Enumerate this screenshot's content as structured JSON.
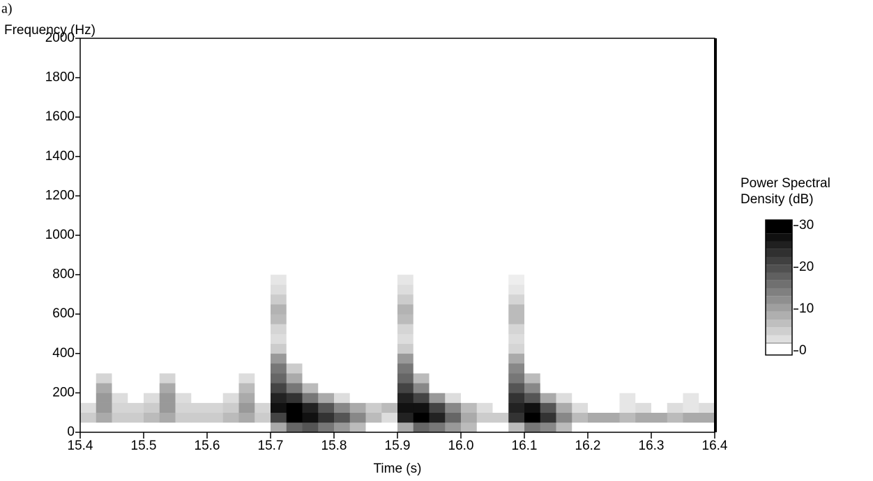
{
  "panel_label": "a)",
  "chart_data": {
    "type": "spectrogram",
    "ylabel": "Frequency (Hz)",
    "xlabel": "Time (s)",
    "colorbar_label": [
      "Power Spectral",
      "Density (dB)"
    ],
    "xlim": [
      15.4,
      16.4
    ],
    "xticks": [
      15.4,
      15.5,
      15.6,
      15.7,
      15.8,
      15.9,
      {
        "value": 16,
        "label": "16.0"
      },
      16.1,
      16.2,
      16.3,
      16.4
    ],
    "ylim": [
      0,
      2000
    ],
    "yticks": [
      0,
      200,
      400,
      600,
      800,
      1000,
      1200,
      1400,
      1600,
      1800,
      2000
    ],
    "clim": [
      0,
      30
    ],
    "cticks": [
      30,
      20,
      10,
      0
    ],
    "x_step": 0.025,
    "y_step": 50,
    "values": [
      [
        0,
        0,
        0,
        0,
        0,
        0,
        0,
        0,
        0,
        0,
        0,
        0,
        10,
        18,
        20,
        16,
        12,
        8,
        0,
        0,
        10,
        18,
        16,
        12,
        8,
        0,
        0,
        8,
        16,
        14,
        8,
        0,
        0,
        0,
        0,
        0,
        0,
        0,
        0,
        0
      ],
      [
        6,
        10,
        6,
        6,
        8,
        10,
        6,
        6,
        6,
        8,
        10,
        6,
        22,
        30,
        28,
        24,
        20,
        14,
        8,
        4,
        26,
        30,
        26,
        18,
        10,
        6,
        6,
        24,
        30,
        24,
        14,
        8,
        10,
        10,
        8,
        10,
        10,
        8,
        10,
        10
      ],
      [
        4,
        12,
        5,
        5,
        6,
        12,
        5,
        5,
        5,
        6,
        12,
        5,
        28,
        30,
        26,
        20,
        14,
        10,
        6,
        8,
        28,
        28,
        22,
        14,
        8,
        4,
        0,
        26,
        28,
        20,
        10,
        4,
        0,
        0,
        3,
        4,
        0,
        4,
        3,
        4
      ],
      [
        0,
        12,
        4,
        0,
        4,
        12,
        4,
        0,
        0,
        4,
        10,
        0,
        26,
        24,
        16,
        10,
        4,
        0,
        0,
        0,
        26,
        22,
        12,
        4,
        0,
        0,
        0,
        24,
        20,
        10,
        4,
        0,
        0,
        0,
        3,
        0,
        0,
        0,
        3,
        0
      ],
      [
        0,
        10,
        0,
        0,
        0,
        10,
        0,
        0,
        0,
        0,
        8,
        0,
        22,
        16,
        8,
        0,
        0,
        0,
        0,
        0,
        22,
        14,
        0,
        0,
        0,
        0,
        0,
        20,
        14,
        0,
        0,
        0,
        0,
        0,
        0,
        0,
        0,
        0,
        0,
        0
      ],
      [
        0,
        5,
        0,
        0,
        0,
        5,
        0,
        0,
        0,
        0,
        4,
        0,
        18,
        10,
        0,
        0,
        0,
        0,
        0,
        0,
        18,
        8,
        0,
        0,
        0,
        0,
        0,
        16,
        8,
        0,
        0,
        0,
        0,
        0,
        0,
        0,
        0,
        0,
        0,
        0
      ],
      [
        0,
        0,
        0,
        0,
        0,
        0,
        0,
        0,
        0,
        0,
        0,
        0,
        16,
        6,
        0,
        0,
        0,
        0,
        0,
        0,
        16,
        0,
        0,
        0,
        0,
        0,
        0,
        14,
        0,
        0,
        0,
        0,
        0,
        0,
        0,
        0,
        0,
        0,
        0,
        0
      ],
      [
        0,
        0,
        0,
        0,
        0,
        0,
        0,
        0,
        0,
        0,
        0,
        0,
        12,
        0,
        0,
        0,
        0,
        0,
        0,
        0,
        12,
        0,
        0,
        0,
        0,
        0,
        0,
        10,
        0,
        0,
        0,
        0,
        0,
        0,
        0,
        0,
        0,
        0,
        0,
        0
      ],
      [
        0,
        0,
        0,
        0,
        0,
        0,
        0,
        0,
        0,
        0,
        0,
        0,
        6,
        0,
        0,
        0,
        0,
        0,
        0,
        0,
        6,
        0,
        0,
        0,
        0,
        0,
        0,
        5,
        0,
        0,
        0,
        0,
        0,
        0,
        0,
        0,
        0,
        0,
        0,
        0
      ],
      [
        0,
        0,
        0,
        0,
        0,
        0,
        0,
        0,
        0,
        0,
        0,
        0,
        4,
        0,
        0,
        0,
        0,
        0,
        0,
        0,
        4,
        0,
        0,
        0,
        0,
        0,
        0,
        4,
        0,
        0,
        0,
        0,
        0,
        0,
        0,
        0,
        0,
        0,
        0,
        0
      ],
      [
        0,
        0,
        0,
        0,
        0,
        0,
        0,
        0,
        0,
        0,
        0,
        0,
        5,
        0,
        0,
        0,
        0,
        0,
        0,
        0,
        5,
        0,
        0,
        0,
        0,
        0,
        0,
        5,
        0,
        0,
        0,
        0,
        0,
        0,
        0,
        0,
        0,
        0,
        0,
        0
      ],
      [
        0,
        0,
        0,
        0,
        0,
        0,
        0,
        0,
        0,
        0,
        0,
        0,
        8,
        0,
        0,
        0,
        0,
        0,
        0,
        0,
        8,
        0,
        0,
        0,
        0,
        0,
        0,
        8,
        0,
        0,
        0,
        0,
        0,
        0,
        0,
        0,
        0,
        0,
        0,
        0
      ],
      [
        0,
        0,
        0,
        0,
        0,
        0,
        0,
        0,
        0,
        0,
        0,
        0,
        9,
        0,
        0,
        0,
        0,
        0,
        0,
        0,
        9,
        0,
        0,
        0,
        0,
        0,
        0,
        8,
        0,
        0,
        0,
        0,
        0,
        0,
        0,
        0,
        0,
        0,
        0,
        0
      ],
      [
        0,
        0,
        0,
        0,
        0,
        0,
        0,
        0,
        0,
        0,
        0,
        0,
        6,
        0,
        0,
        0,
        0,
        0,
        0,
        0,
        6,
        0,
        0,
        0,
        0,
        0,
        0,
        5,
        0,
        0,
        0,
        0,
        0,
        0,
        0,
        0,
        0,
        0,
        0,
        0
      ],
      [
        0,
        0,
        0,
        0,
        0,
        0,
        0,
        0,
        0,
        0,
        0,
        0,
        4,
        0,
        0,
        0,
        0,
        0,
        0,
        0,
        4,
        0,
        0,
        0,
        0,
        0,
        0,
        3,
        0,
        0,
        0,
        0,
        0,
        0,
        0,
        0,
        0,
        0,
        0,
        0
      ],
      [
        0,
        0,
        0,
        0,
        0,
        0,
        0,
        0,
        0,
        0,
        0,
        0,
        3,
        0,
        0,
        0,
        0,
        0,
        0,
        0,
        3,
        0,
        0,
        0,
        0,
        0,
        0,
        2,
        0,
        0,
        0,
        0,
        0,
        0,
        0,
        0,
        0,
        0,
        0,
        0
      ]
    ]
  }
}
